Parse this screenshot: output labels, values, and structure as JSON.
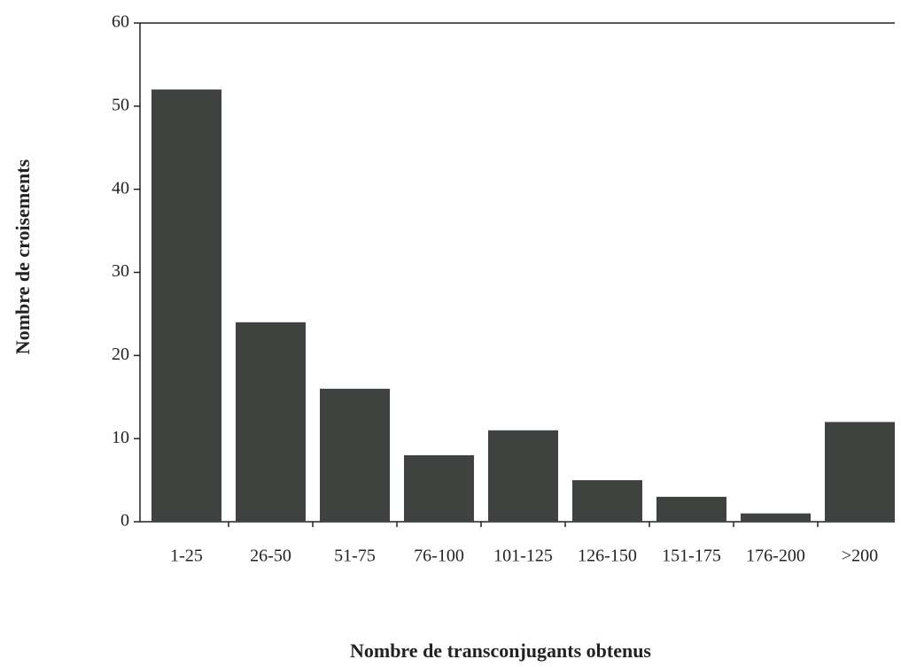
{
  "chart_data": {
    "type": "bar",
    "x_label": "Nombre de transconjugants obtenus",
    "y_label": "Nombre de croisements",
    "categories": [
      "1-25",
      "26-50",
      "51-75",
      "76-100",
      "101-125",
      "126-150",
      "151-175",
      "176-200",
      ">200"
    ],
    "values": [
      52,
      24,
      16,
      8,
      11,
      5,
      3,
      1,
      12
    ],
    "color": "#3e433f",
    "ylim": [
      0,
      60
    ],
    "yticks": [
      0,
      10,
      20,
      30,
      40,
      50,
      60
    ],
    "grid": false
  }
}
